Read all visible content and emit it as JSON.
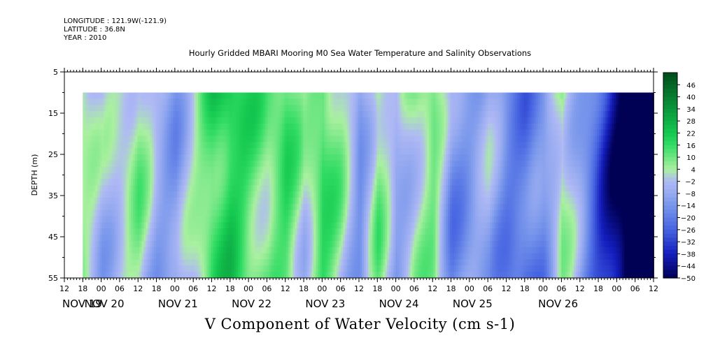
{
  "header": {
    "longitude": "LONGITUDE : 121.9W(-121.9)",
    "latitude": "LATITUDE : 36.8N",
    "year": "YEAR : 2010",
    "title": "Hourly Gridded MBARI Mooring M0 Sea Water Temperature and Salinity Observations"
  },
  "chart_data": {
    "type": "heatmap",
    "title": "Hourly Gridded MBARI Mooring M0 Sea Water Temperature and Salinity Observations",
    "variable_label": "V Component of Water Velocity (cm s-1)",
    "xlabel": "",
    "ylabel": "DEPTH (m)",
    "x_hour_ticks": [
      "12",
      "18",
      "00",
      "06",
      "12",
      "18",
      "00",
      "06",
      "12",
      "18",
      "00",
      "06",
      "12",
      "18",
      "00",
      "06",
      "12",
      "18",
      "00",
      "06",
      "12",
      "18",
      "00",
      "06",
      "12",
      "18",
      "00",
      "06",
      "12",
      "18",
      "00",
      "06",
      "12"
    ],
    "x_day_labels": [
      "NOV 19",
      "NOV 20",
      "NOV 21",
      "NOV 22",
      "NOV 23",
      "NOV 24",
      "NOV 25",
      "NOV 26"
    ],
    "x_range_hours": [
      "NOV 19 12:00",
      "NOV 26 12:00"
    ],
    "data_start": "NOV 19 18:00",
    "y_ticks": [
      5,
      15,
      25,
      35,
      45,
      55
    ],
    "ylim": [
      5,
      55
    ],
    "y_data_range": [
      10,
      55
    ],
    "colorbar": {
      "ticks": [
        46,
        40,
        34,
        28,
        22,
        16,
        10,
        4,
        -2,
        -8,
        -14,
        -20,
        -26,
        -32,
        -38,
        -44,
        -50
      ],
      "range": [
        -50,
        52
      ],
      "colors_high": "#004d1a",
      "colors_mid": "#a8f0a0",
      "colors_low": "#000a55"
    },
    "profile_by_day": {
      "note_units": "cm s-1, approximate column-mean V velocity",
      "days": [
        "NOV 19 18",
        "NOV 20 00",
        "NOV 20 06",
        "NOV 20 12",
        "NOV 20 18",
        "NOV 21 00",
        "NOV 21 06",
        "NOV 21 12",
        "NOV 21 18",
        "NOV 22 00",
        "NOV 22 06",
        "NOV 22 12",
        "NOV 22 18",
        "NOV 23 00",
        "NOV 23 06",
        "NOV 23 12",
        "NOV 23 18",
        "NOV 24 00",
        "NOV 24 06",
        "NOV 24 12",
        "NOV 24 18",
        "NOV 25 00",
        "NOV 25 06",
        "NOV 25 12",
        "NOV 25 18",
        "NOV 26 00",
        "NOV 26 06",
        "NOV 26 12"
      ],
      "values": [
        6,
        -4,
        2,
        8,
        -6,
        -10,
        2,
        18,
        22,
        14,
        10,
        16,
        2,
        18,
        6,
        -12,
        10,
        -8,
        4,
        10,
        -14,
        -10,
        -6,
        -16,
        -20,
        -14,
        8,
        -10
      ]
    }
  }
}
